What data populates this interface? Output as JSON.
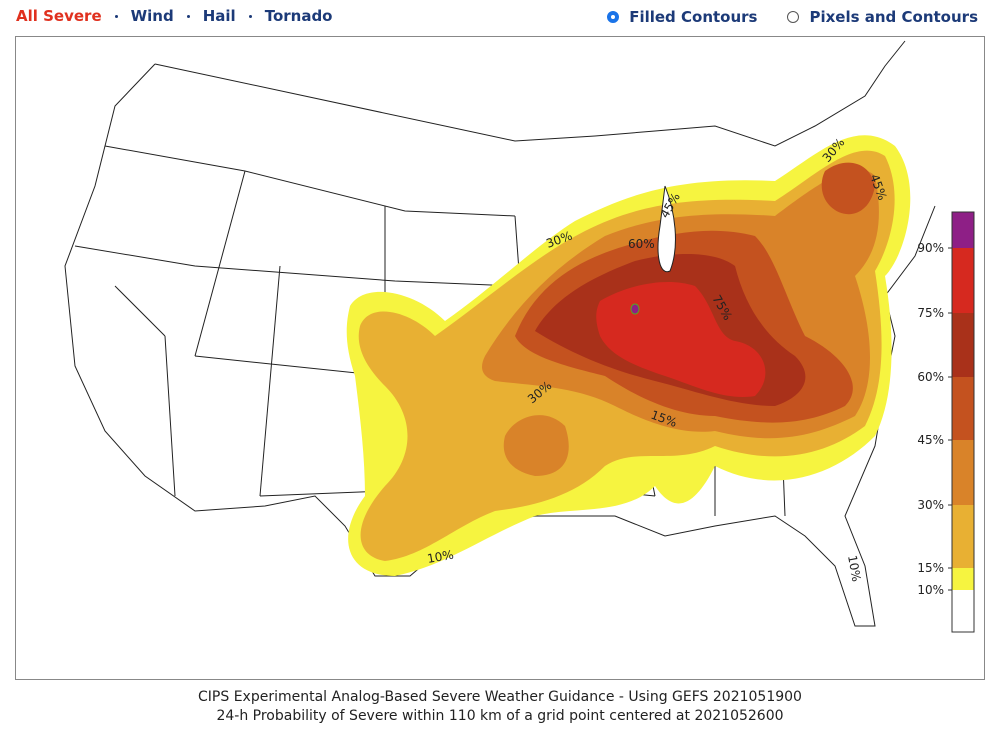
{
  "tabs": [
    "All Severe",
    "Wind",
    "Hail",
    "Tornado"
  ],
  "active_tab": 0,
  "display_options": [
    "Filled Contours",
    "Pixels and Contours"
  ],
  "selected_option": 0,
  "map": {
    "contour_labels": [
      "30%",
      "60%",
      "45%",
      "75%",
      "30%",
      "15%",
      "10%",
      "30%",
      "45%",
      "10%"
    ]
  },
  "colorbar": {
    "labels": [
      "90%",
      "75%",
      "60%",
      "45%",
      "30%",
      "15%",
      "10%"
    ],
    "colors": [
      "#8e1f86",
      "#d6291f",
      "#a9311a",
      "#c4521f",
      "#d98329",
      "#e8b033",
      "#f6f440",
      "#ffffff"
    ]
  },
  "caption": [
    "CIPS Experimental Analog-Based Severe Weather Guidance - Using GEFS 2021051900",
    "24-h Probability of Severe within 110 km of a grid point centered at 2021052600"
  ]
}
